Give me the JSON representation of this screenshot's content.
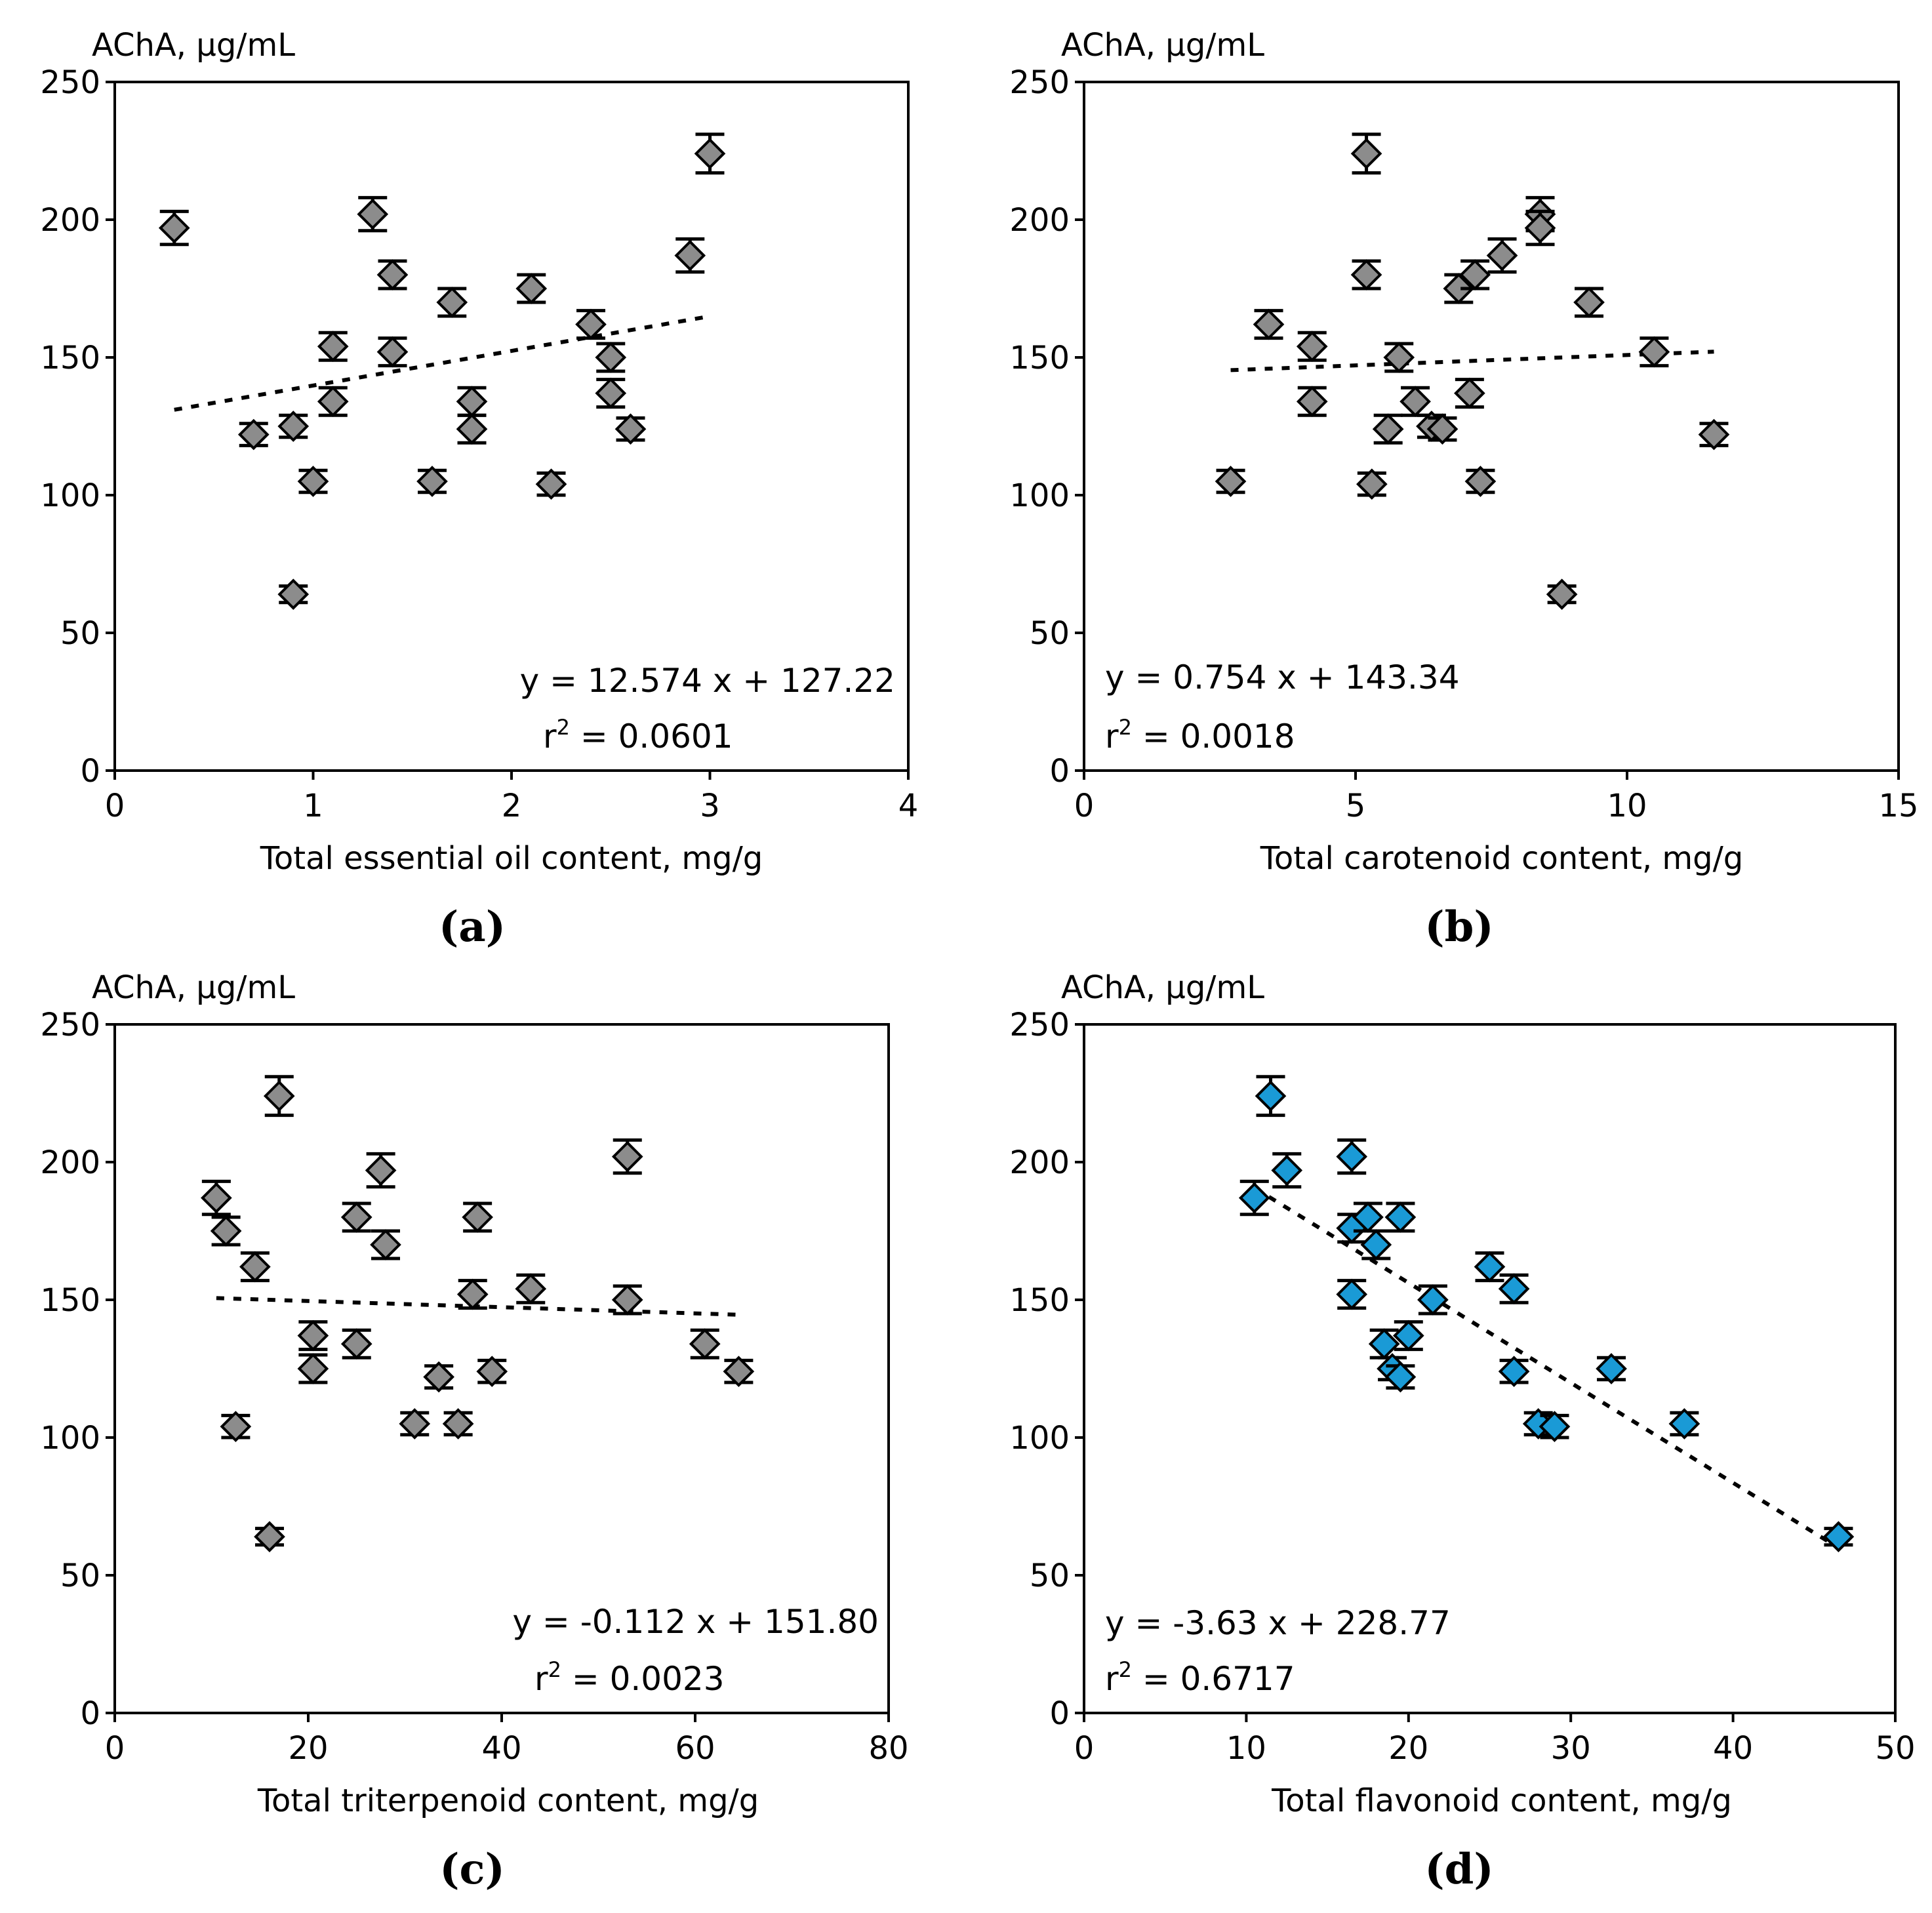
{
  "chart_data": [
    {
      "panel": "(a)",
      "type": "scatter",
      "ylabel": "AChA, μg/mL",
      "xlabel": "Total essential oil content, mg/g",
      "xlim": [
        0,
        4
      ],
      "ylim": [
        0,
        250
      ],
      "xticks": [
        0,
        1,
        2,
        3,
        4
      ],
      "yticks": [
        0,
        50,
        100,
        150,
        200,
        250
      ],
      "grid": false,
      "marker_color": "#8c8c8c",
      "points": [
        {
          "x": 0.3,
          "y": 197,
          "err": 6
        },
        {
          "x": 0.7,
          "y": 122,
          "err": 4
        },
        {
          "x": 0.9,
          "y": 125,
          "err": 4
        },
        {
          "x": 0.9,
          "y": 64,
          "err": 3
        },
        {
          "x": 1.0,
          "y": 105,
          "err": 4
        },
        {
          "x": 1.1,
          "y": 134,
          "err": 5
        },
        {
          "x": 1.1,
          "y": 154,
          "err": 5
        },
        {
          "x": 1.3,
          "y": 202,
          "err": 6
        },
        {
          "x": 1.4,
          "y": 180,
          "err": 5
        },
        {
          "x": 1.4,
          "y": 152,
          "err": 5
        },
        {
          "x": 1.6,
          "y": 105,
          "err": 4
        },
        {
          "x": 1.7,
          "y": 170,
          "err": 5
        },
        {
          "x": 1.8,
          "y": 134,
          "err": 5
        },
        {
          "x": 1.8,
          "y": 124,
          "err": 5
        },
        {
          "x": 2.1,
          "y": 175,
          "err": 5
        },
        {
          "x": 2.2,
          "y": 104,
          "err": 4
        },
        {
          "x": 2.4,
          "y": 162,
          "err": 5
        },
        {
          "x": 2.5,
          "y": 150,
          "err": 5
        },
        {
          "x": 2.5,
          "y": 137,
          "err": 5
        },
        {
          "x": 2.6,
          "y": 124,
          "err": 4
        },
        {
          "x": 2.9,
          "y": 187,
          "err": 6
        },
        {
          "x": 3.0,
          "y": 224,
          "err": 7
        }
      ],
      "trendline": {
        "slope": 12.574,
        "intercept": 127.22,
        "x_range": [
          0.3,
          3.0
        ]
      },
      "equation": "y = 12.574 x + 127.22",
      "r2_prefix": "r",
      "r2_exp": "2",
      "r2_value": " = 0.0601",
      "annotation_corner": "bottom-right"
    },
    {
      "panel": "(b)",
      "type": "scatter",
      "ylabel": "AChA, μg/mL",
      "xlabel": "Total carotenoid content, mg/g",
      "xlim": [
        0,
        15
      ],
      "ylim": [
        0,
        250
      ],
      "xticks": [
        0,
        5,
        10,
        15
      ],
      "yticks": [
        0,
        50,
        100,
        150,
        200,
        250
      ],
      "grid": false,
      "marker_color": "#8c8c8c",
      "points": [
        {
          "x": 2.7,
          "y": 105,
          "err": 4
        },
        {
          "x": 3.4,
          "y": 162,
          "err": 5
        },
        {
          "x": 4.2,
          "y": 154,
          "err": 5
        },
        {
          "x": 4.2,
          "y": 134,
          "err": 5
        },
        {
          "x": 5.2,
          "y": 224,
          "err": 7
        },
        {
          "x": 5.2,
          "y": 180,
          "err": 5
        },
        {
          "x": 5.3,
          "y": 104,
          "err": 4
        },
        {
          "x": 5.6,
          "y": 124,
          "err": 5
        },
        {
          "x": 5.8,
          "y": 150,
          "err": 5
        },
        {
          "x": 6.1,
          "y": 134,
          "err": 5
        },
        {
          "x": 6.4,
          "y": 125,
          "err": 4
        },
        {
          "x": 6.6,
          "y": 124,
          "err": 4
        },
        {
          "x": 6.9,
          "y": 175,
          "err": 5
        },
        {
          "x": 7.1,
          "y": 137,
          "err": 5
        },
        {
          "x": 7.2,
          "y": 180,
          "err": 5
        },
        {
          "x": 7.3,
          "y": 105,
          "err": 4
        },
        {
          "x": 7.7,
          "y": 187,
          "err": 6
        },
        {
          "x": 8.4,
          "y": 202,
          "err": 6
        },
        {
          "x": 8.4,
          "y": 197,
          "err": 6
        },
        {
          "x": 8.8,
          "y": 64,
          "err": 3
        },
        {
          "x": 9.3,
          "y": 170,
          "err": 5
        },
        {
          "x": 10.5,
          "y": 152,
          "err": 5
        },
        {
          "x": 11.6,
          "y": 122,
          "err": 4
        }
      ],
      "trendline": {
        "slope": 0.754,
        "intercept": 143.34,
        "x_range": [
          2.7,
          11.6
        ]
      },
      "equation": "y = 0.754 x + 143.34",
      "r2_prefix": "r",
      "r2_exp": "2",
      "r2_value": " = 0.0018",
      "annotation_corner": "bottom-left"
    },
    {
      "panel": "(c)",
      "type": "scatter",
      "ylabel": "AChA, μg/mL",
      "xlabel": "Total triterpenoid content, mg/g",
      "xlim": [
        0,
        80
      ],
      "ylim": [
        0,
        250
      ],
      "xticks": [
        0,
        20,
        40,
        60,
        80
      ],
      "yticks": [
        0,
        50,
        100,
        150,
        200,
        250
      ],
      "grid": false,
      "marker_color": "#8c8c8c",
      "points": [
        {
          "x": 10.5,
          "y": 187,
          "err": 6
        },
        {
          "x": 11.5,
          "y": 175,
          "err": 5
        },
        {
          "x": 12.5,
          "y": 104,
          "err": 4
        },
        {
          "x": 14.5,
          "y": 162,
          "err": 5
        },
        {
          "x": 16.0,
          "y": 64,
          "err": 3
        },
        {
          "x": 17.0,
          "y": 224,
          "err": 7
        },
        {
          "x": 20.5,
          "y": 137,
          "err": 5
        },
        {
          "x": 20.5,
          "y": 125,
          "err": 5
        },
        {
          "x": 25.0,
          "y": 180,
          "err": 5
        },
        {
          "x": 25.0,
          "y": 134,
          "err": 5
        },
        {
          "x": 27.5,
          "y": 197,
          "err": 6
        },
        {
          "x": 28.0,
          "y": 170,
          "err": 5
        },
        {
          "x": 31.0,
          "y": 105,
          "err": 4
        },
        {
          "x": 33.5,
          "y": 122,
          "err": 4
        },
        {
          "x": 35.5,
          "y": 105,
          "err": 4
        },
        {
          "x": 37.0,
          "y": 152,
          "err": 5
        },
        {
          "x": 37.5,
          "y": 180,
          "err": 5
        },
        {
          "x": 39.0,
          "y": 124,
          "err": 4
        },
        {
          "x": 43.0,
          "y": 154,
          "err": 5
        },
        {
          "x": 53.0,
          "y": 202,
          "err": 6
        },
        {
          "x": 53.0,
          "y": 150,
          "err": 5
        },
        {
          "x": 61.0,
          "y": 134,
          "err": 5
        },
        {
          "x": 64.5,
          "y": 124,
          "err": 4
        }
      ],
      "trendline": {
        "slope": -0.112,
        "intercept": 151.8,
        "x_range": [
          10.5,
          64.5
        ]
      },
      "equation": "y = -0.112 x + 151.80",
      "r2_prefix": "r",
      "r2_exp": "2",
      "r2_value": " = 0.0023",
      "annotation_corner": "bottom-right"
    },
    {
      "panel": "(d)",
      "type": "scatter",
      "ylabel": "AChA, μg/mL",
      "xlabel": "Total flavonoid content, mg/g",
      "xlim": [
        0,
        50
      ],
      "ylim": [
        0,
        250
      ],
      "xticks": [
        0,
        10,
        20,
        30,
        40,
        50
      ],
      "yticks": [
        0,
        50,
        100,
        150,
        200,
        250
      ],
      "grid": false,
      "marker_color": "#1a9ad6",
      "points": [
        {
          "x": 10.5,
          "y": 187,
          "err": 6
        },
        {
          "x": 11.5,
          "y": 224,
          "err": 7
        },
        {
          "x": 12.5,
          "y": 197,
          "err": 6
        },
        {
          "x": 16.5,
          "y": 202,
          "err": 6
        },
        {
          "x": 16.5,
          "y": 176,
          "err": 5
        },
        {
          "x": 16.5,
          "y": 152,
          "err": 5
        },
        {
          "x": 17.5,
          "y": 180,
          "err": 5
        },
        {
          "x": 18.0,
          "y": 170,
          "err": 5
        },
        {
          "x": 18.5,
          "y": 134,
          "err": 5
        },
        {
          "x": 19.0,
          "y": 125,
          "err": 4
        },
        {
          "x": 19.5,
          "y": 180,
          "err": 5
        },
        {
          "x": 19.5,
          "y": 122,
          "err": 4
        },
        {
          "x": 20.0,
          "y": 137,
          "err": 5
        },
        {
          "x": 21.5,
          "y": 150,
          "err": 5
        },
        {
          "x": 25.0,
          "y": 162,
          "err": 5
        },
        {
          "x": 26.5,
          "y": 154,
          "err": 5
        },
        {
          "x": 26.5,
          "y": 124,
          "err": 4
        },
        {
          "x": 28.0,
          "y": 105,
          "err": 4
        },
        {
          "x": 29.0,
          "y": 104,
          "err": 4
        },
        {
          "x": 32.5,
          "y": 125,
          "err": 4
        },
        {
          "x": 37.0,
          "y": 105,
          "err": 4
        },
        {
          "x": 46.5,
          "y": 64,
          "err": 3
        }
      ],
      "trendline": {
        "slope": -3.63,
        "intercept": 228.77,
        "x_range": [
          10.5,
          46.5
        ]
      },
      "equation": "y = -3.63 x + 228.77",
      "r2_prefix": "r",
      "r2_exp": "2",
      "r2_value": " = 0.6717",
      "annotation_corner": "bottom-left"
    }
  ]
}
